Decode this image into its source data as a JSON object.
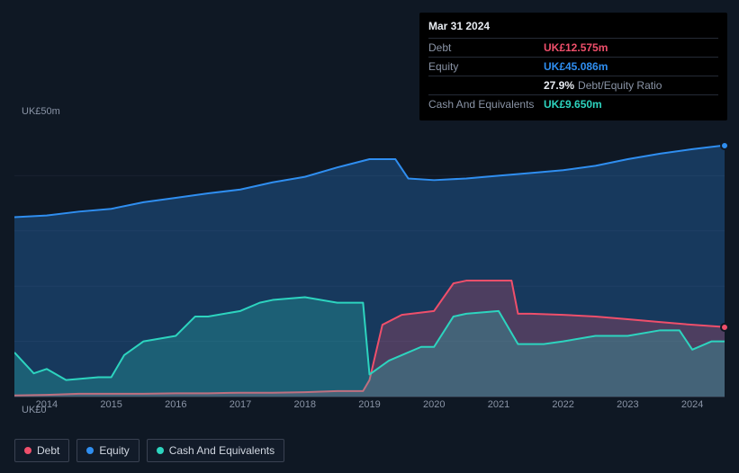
{
  "tooltip": {
    "date": "Mar 31 2024",
    "rows": [
      {
        "label": "Debt",
        "value": "UK£12.575m",
        "color": "#ef4f6b"
      },
      {
        "label": "Equity",
        "value": "UK£45.086m",
        "color": "#2f8ef0"
      },
      {
        "label": "",
        "pct": "27.9%",
        "ratio_label": "Debt/Equity Ratio"
      },
      {
        "label": "Cash And Equivalents",
        "value": "UK£9.650m",
        "color": "#2dd4bf"
      }
    ]
  },
  "chart": {
    "type": "area",
    "background_color": "#0f1824",
    "grid_color": "#1a2230",
    "axis_color": "#8a94a6",
    "ylim": [
      0,
      50
    ],
    "ylabels": {
      "top": "UK£50m",
      "bottom": "UK£0"
    },
    "x_years": [
      2014,
      2015,
      2016,
      2017,
      2018,
      2019,
      2020,
      2021,
      2022,
      2023,
      2024
    ],
    "x_start": 2013.5,
    "x_end": 2024.5,
    "series": {
      "equity": {
        "label": "Equity",
        "color": "#2f8ef0",
        "fill": "rgba(47,142,240,0.28)",
        "points": [
          [
            2013.5,
            32.5
          ],
          [
            2014.0,
            32.8
          ],
          [
            2014.5,
            33.5
          ],
          [
            2015.0,
            34.0
          ],
          [
            2015.5,
            35.2
          ],
          [
            2016.0,
            36.0
          ],
          [
            2016.5,
            36.8
          ],
          [
            2017.0,
            37.5
          ],
          [
            2017.5,
            38.8
          ],
          [
            2018.0,
            39.8
          ],
          [
            2018.5,
            41.5
          ],
          [
            2019.0,
            43.0
          ],
          [
            2019.4,
            43.0
          ],
          [
            2019.6,
            39.5
          ],
          [
            2020.0,
            39.2
          ],
          [
            2020.5,
            39.5
          ],
          [
            2021.0,
            40.0
          ],
          [
            2021.5,
            40.5
          ],
          [
            2022.0,
            41.0
          ],
          [
            2022.5,
            41.8
          ],
          [
            2023.0,
            43.0
          ],
          [
            2023.5,
            44.0
          ],
          [
            2024.0,
            44.8
          ],
          [
            2024.5,
            45.5
          ]
        ]
      },
      "debt": {
        "label": "Debt",
        "color": "#ef4f6b",
        "fill": "rgba(239,79,107,0.25)",
        "points": [
          [
            2013.5,
            0.2
          ],
          [
            2014.0,
            0.3
          ],
          [
            2014.5,
            0.5
          ],
          [
            2015.0,
            0.5
          ],
          [
            2015.5,
            0.5
          ],
          [
            2016.0,
            0.6
          ],
          [
            2016.5,
            0.6
          ],
          [
            2017.0,
            0.7
          ],
          [
            2017.5,
            0.7
          ],
          [
            2018.0,
            0.8
          ],
          [
            2018.5,
            1.0
          ],
          [
            2018.9,
            1.0
          ],
          [
            2019.0,
            3.0
          ],
          [
            2019.2,
            13.0
          ],
          [
            2019.5,
            14.8
          ],
          [
            2020.0,
            15.5
          ],
          [
            2020.3,
            20.5
          ],
          [
            2020.5,
            21.0
          ],
          [
            2021.0,
            21.0
          ],
          [
            2021.2,
            21.0
          ],
          [
            2021.3,
            15.0
          ],
          [
            2021.5,
            15.0
          ],
          [
            2022.0,
            14.8
          ],
          [
            2022.5,
            14.5
          ],
          [
            2023.0,
            14.0
          ],
          [
            2023.5,
            13.5
          ],
          [
            2024.0,
            13.0
          ],
          [
            2024.5,
            12.6
          ]
        ]
      },
      "cash": {
        "label": "Cash And Equivalents",
        "color": "#2dd4bf",
        "fill": "rgba(45,212,191,0.25)",
        "points": [
          [
            2013.5,
            8.0
          ],
          [
            2013.8,
            4.2
          ],
          [
            2014.0,
            5.0
          ],
          [
            2014.3,
            3.0
          ],
          [
            2014.8,
            3.5
          ],
          [
            2015.0,
            3.5
          ],
          [
            2015.2,
            7.5
          ],
          [
            2015.5,
            10.0
          ],
          [
            2016.0,
            11.0
          ],
          [
            2016.3,
            14.5
          ],
          [
            2016.5,
            14.5
          ],
          [
            2017.0,
            15.5
          ],
          [
            2017.3,
            17.0
          ],
          [
            2017.5,
            17.5
          ],
          [
            2018.0,
            18.0
          ],
          [
            2018.5,
            17.0
          ],
          [
            2018.9,
            17.0
          ],
          [
            2019.0,
            4.0
          ],
          [
            2019.3,
            6.5
          ],
          [
            2019.5,
            7.5
          ],
          [
            2019.8,
            9.0
          ],
          [
            2020.0,
            9.0
          ],
          [
            2020.3,
            14.5
          ],
          [
            2020.5,
            15.0
          ],
          [
            2021.0,
            15.5
          ],
          [
            2021.3,
            9.5
          ],
          [
            2021.7,
            9.5
          ],
          [
            2022.0,
            10.0
          ],
          [
            2022.5,
            11.0
          ],
          [
            2023.0,
            11.0
          ],
          [
            2023.5,
            12.0
          ],
          [
            2023.8,
            12.0
          ],
          [
            2024.0,
            8.5
          ],
          [
            2024.3,
            10.0
          ],
          [
            2024.5,
            10.0
          ]
        ]
      }
    },
    "markers": [
      {
        "series": "equity",
        "x": 2024.5,
        "y": 45.5
      },
      {
        "series": "debt",
        "x": 2024.5,
        "y": 12.6
      }
    ]
  },
  "legend": [
    {
      "key": "debt",
      "label": "Debt",
      "color": "#ef4f6b"
    },
    {
      "key": "equity",
      "label": "Equity",
      "color": "#2f8ef0"
    },
    {
      "key": "cash",
      "label": "Cash And Equivalents",
      "color": "#2dd4bf"
    }
  ]
}
